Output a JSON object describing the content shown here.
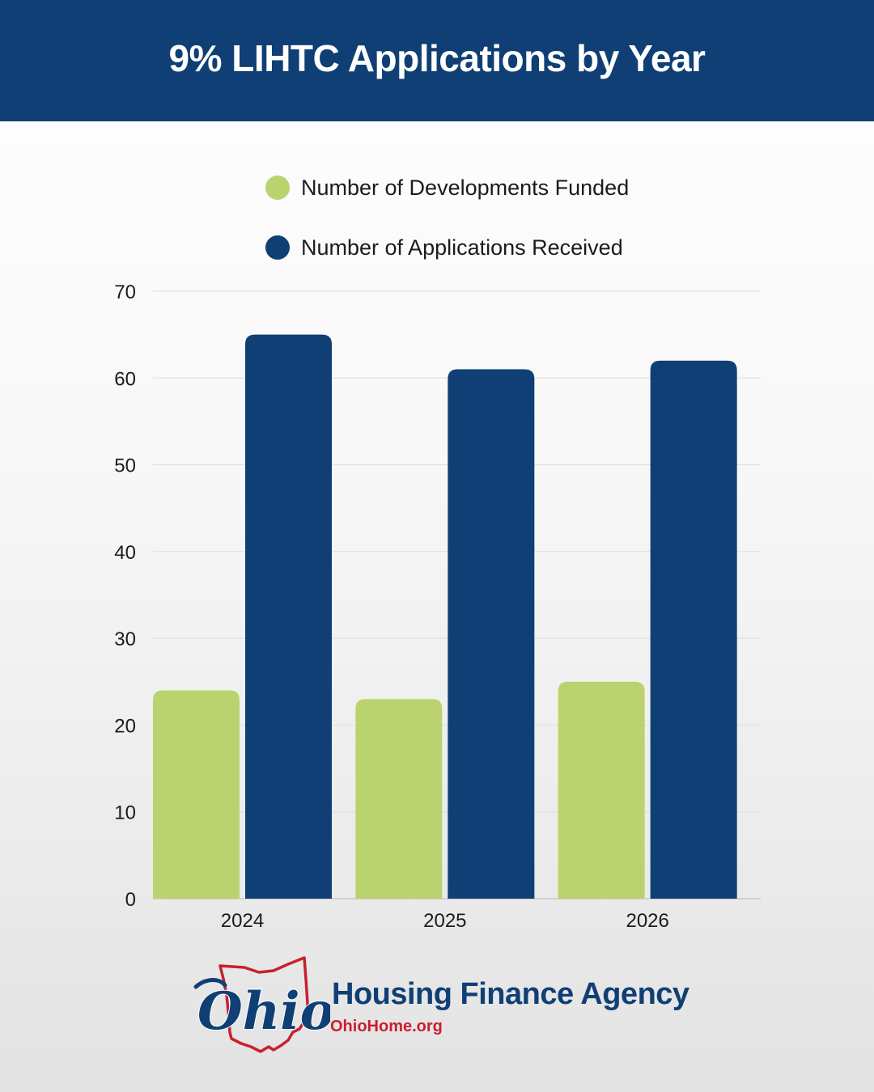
{
  "header": {
    "title": "9% LIHTC Applications by Year"
  },
  "legend": [
    {
      "label": "Number of Developments Funded",
      "color": "#bbd36e"
    },
    {
      "label": "Number of Applications Received",
      "color": "#0f3f74"
    }
  ],
  "chart_data": {
    "type": "bar",
    "categories": [
      "2024",
      "2025",
      "2026"
    ],
    "series": [
      {
        "name": "Number of Developments Funded",
        "values": [
          24,
          23,
          25
        ],
        "color": "#bbd36e"
      },
      {
        "name": "Number of Applications Received",
        "values": [
          65,
          61,
          62
        ],
        "color": "#0f3f74"
      }
    ],
    "ylim": [
      0,
      70
    ],
    "yticks": [
      "0",
      "10",
      "20",
      "30",
      "40",
      "50",
      "60",
      "70"
    ],
    "grid": true,
    "legend_position": "top-center"
  },
  "footer": {
    "logo_text": "Ohio",
    "agency_name": "Housing Finance Agency",
    "url": "OhioHome.org"
  }
}
